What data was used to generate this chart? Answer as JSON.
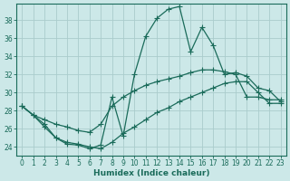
{
  "xlabel": "Humidex (Indice chaleur)",
  "xlim": [
    -0.5,
    23.5
  ],
  "ylim": [
    23.0,
    39.8
  ],
  "yticks": [
    24,
    26,
    28,
    30,
    32,
    34,
    36,
    38
  ],
  "xticks": [
    0,
    1,
    2,
    3,
    4,
    5,
    6,
    7,
    8,
    9,
    10,
    11,
    12,
    13,
    14,
    15,
    16,
    17,
    18,
    19,
    20,
    21,
    22,
    23
  ],
  "bg_color": "#cce8e8",
  "grid_color": "#aacccc",
  "line_color": "#1a6b5a",
  "line1_y": [
    28.5,
    27.5,
    26.5,
    25.0,
    24.3,
    24.2,
    23.8,
    24.2,
    29.5,
    25.2,
    32.0,
    36.2,
    38.2,
    39.2,
    39.5,
    34.5,
    37.2,
    35.2,
    32.0,
    32.2,
    31.8,
    30.5,
    30.2,
    29.0
  ],
  "line2_y": [
    28.5,
    27.5,
    27.0,
    26.5,
    26.2,
    25.8,
    25.6,
    26.5,
    28.5,
    29.5,
    30.2,
    30.8,
    31.2,
    31.5,
    31.8,
    32.2,
    32.5,
    32.5,
    32.3,
    32.0,
    29.5,
    29.5,
    29.2,
    29.2
  ],
  "line3_y": [
    28.5,
    27.5,
    26.2,
    25.0,
    24.5,
    24.3,
    24.0,
    23.8,
    24.5,
    25.5,
    26.2,
    27.0,
    27.8,
    28.3,
    29.0,
    29.5,
    30.0,
    30.5,
    31.0,
    31.2,
    31.2,
    30.0,
    28.8,
    28.8
  ]
}
